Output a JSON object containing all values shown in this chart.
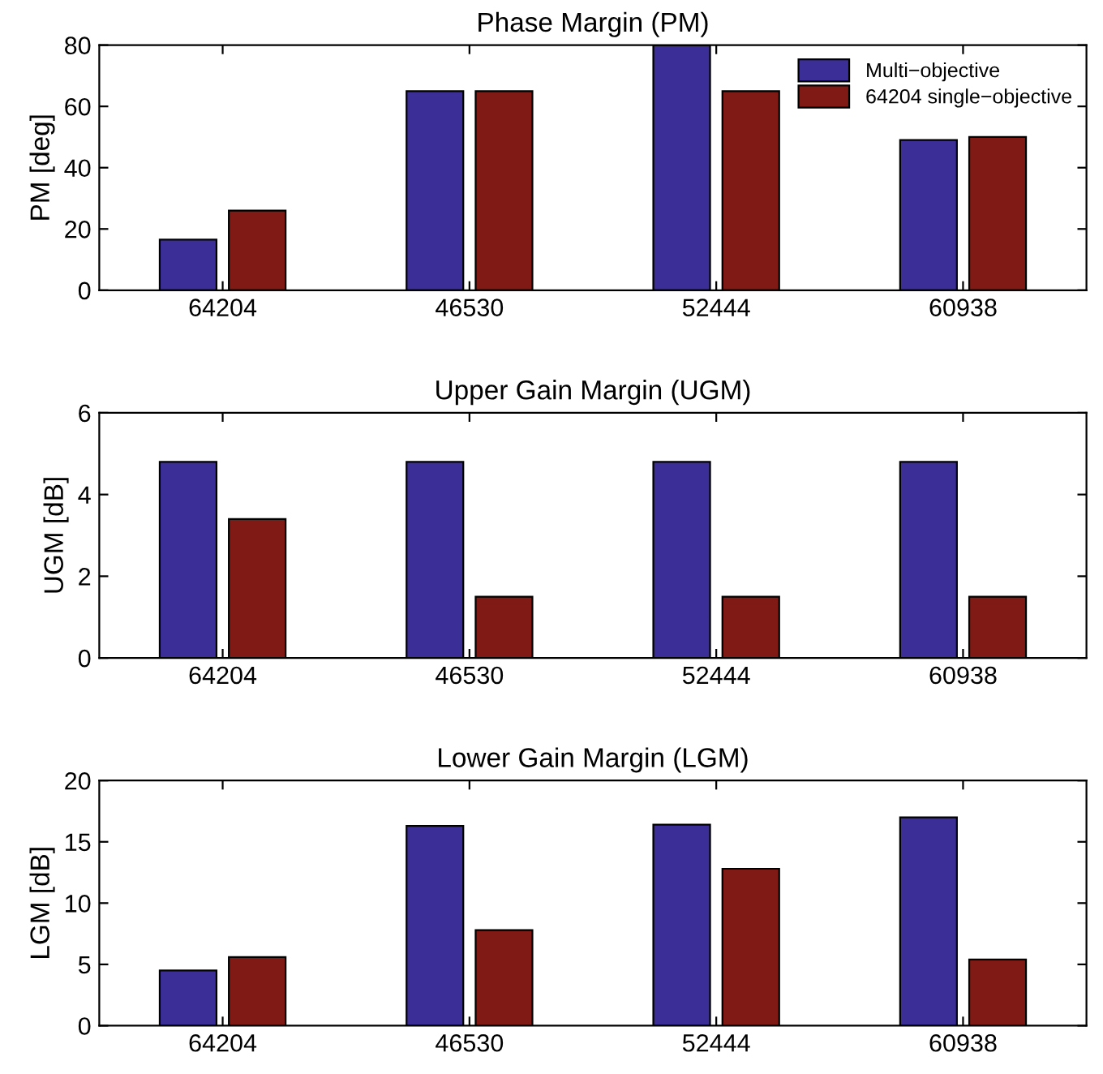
{
  "chart_data": [
    {
      "type": "bar",
      "title": "Phase Margin (PM)",
      "ylabel": "PM [deg]",
      "categories": [
        "64204",
        "46530",
        "52444",
        "60938"
      ],
      "series": [
        {
          "name": "Multi−objective",
          "color": "#3b2e96",
          "values": [
            16.5,
            65,
            80,
            49
          ]
        },
        {
          "name": "64204 single−objective",
          "color": "#7f1a14",
          "values": [
            26,
            65,
            65,
            50
          ]
        }
      ],
      "ylim": [
        0,
        80
      ],
      "yticks": [
        0,
        20,
        40,
        60,
        80
      ],
      "legend": "top right",
      "grid": false
    },
    {
      "type": "bar",
      "title": "Upper Gain Margin (UGM)",
      "ylabel": "UGM [dB]",
      "categories": [
        "64204",
        "46530",
        "52444",
        "60938"
      ],
      "series": [
        {
          "color": "#3b2e96",
          "values": [
            4.8,
            4.8,
            4.8,
            4.8
          ]
        },
        {
          "color": "#7f1a14",
          "values": [
            3.4,
            1.5,
            1.5,
            1.5
          ]
        }
      ],
      "ylim": [
        0,
        6
      ],
      "yticks": [
        0,
        2,
        4,
        6
      ],
      "grid": false
    },
    {
      "type": "bar",
      "title": "Lower Gain Margin (LGM)",
      "ylabel": "LGM [dB]",
      "categories": [
        "64204",
        "46530",
        "52444",
        "60938"
      ],
      "series": [
        {
          "color": "#3b2e96",
          "values": [
            4.5,
            16.3,
            16.4,
            17
          ]
        },
        {
          "color": "#7f1a14",
          "values": [
            5.6,
            7.8,
            12.8,
            5.4
          ]
        }
      ],
      "ylim": [
        0,
        20
      ],
      "yticks": [
        0,
        5,
        10,
        15,
        20
      ],
      "grid": false
    }
  ]
}
